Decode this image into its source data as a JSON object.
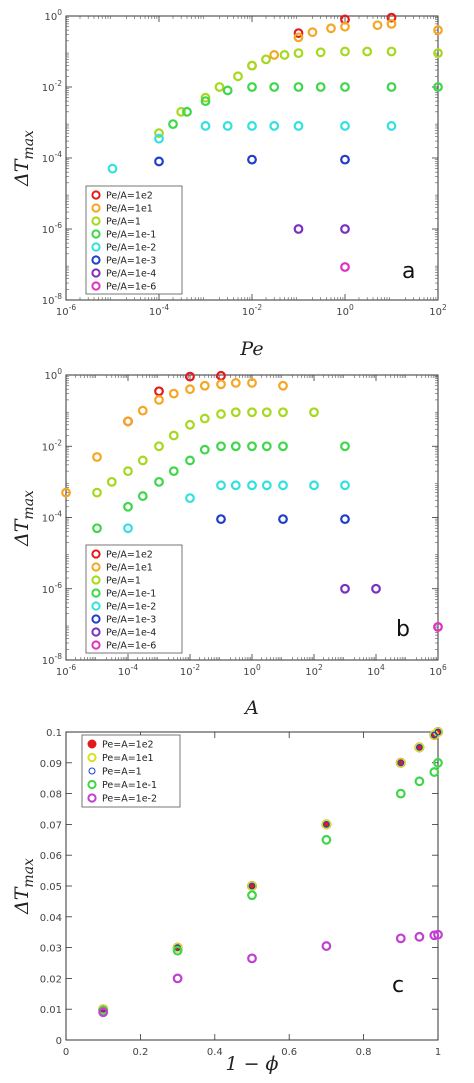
{
  "chart_data": [
    {
      "type": "scatter",
      "panel_label": "a",
      "xlabel": "Pe",
      "ylabel": "ΔT_max",
      "xscale": "log",
      "yscale": "log",
      "xlim": [
        1e-06,
        100.0
      ],
      "ylim": [
        1e-08,
        1
      ],
      "x_ticks": [
        {
          "v": 1e-06,
          "t": "10",
          "e": "-6"
        },
        {
          "v": 0.0001,
          "t": "10",
          "e": "-4"
        },
        {
          "v": 0.01,
          "t": "10",
          "e": "-2"
        },
        {
          "v": 1,
          "t": "10",
          "e": "0"
        },
        {
          "v": 100.0,
          "t": "10",
          "e": "2"
        }
      ],
      "y_ticks": [
        {
          "v": 1e-08,
          "t": "10",
          "e": "-8"
        },
        {
          "v": 1e-06,
          "t": "10",
          "e": "-6"
        },
        {
          "v": 0.0001,
          "t": "10",
          "e": "-4"
        },
        {
          "v": 0.01,
          "t": "10",
          "e": "-2"
        },
        {
          "v": 1,
          "t": "10",
          "e": "0"
        }
      ],
      "legend_position": "bottom-left",
      "series": [
        {
          "name": "Pe/A=1e2",
          "color": "#e41a1c",
          "points": [
            [
              0.1,
              0.33
            ],
            [
              1,
              0.8
            ],
            [
              10,
              0.9
            ]
          ]
        },
        {
          "name": "Pe/A=1e1",
          "color": "#f5a623",
          "points": [
            [
              0.01,
              0.04
            ],
            [
              0.03,
              0.08
            ],
            [
              0.1,
              0.25
            ],
            [
              0.2,
              0.35
            ],
            [
              0.5,
              0.45
            ],
            [
              1,
              0.5
            ],
            [
              5,
              0.55
            ],
            [
              10,
              0.6
            ],
            [
              100,
              0.4
            ]
          ]
        },
        {
          "name": "Pe/A=1",
          "color": "#a6d81e",
          "points": [
            [
              0.0001,
              0.0005
            ],
            [
              0.0003,
              0.002
            ],
            [
              0.001,
              0.005
            ],
            [
              0.002,
              0.01
            ],
            [
              0.005,
              0.02
            ],
            [
              0.01,
              0.04
            ],
            [
              0.02,
              0.06
            ],
            [
              0.05,
              0.08
            ],
            [
              0.1,
              0.09
            ],
            [
              0.3,
              0.095
            ],
            [
              1,
              0.1
            ],
            [
              3,
              0.1
            ],
            [
              10,
              0.1
            ],
            [
              100,
              0.09
            ]
          ]
        },
        {
          "name": "Pe/A=1e-1",
          "color": "#3fd64a",
          "points": [
            [
              0.0002,
              0.0009
            ],
            [
              0.0004,
              0.002
            ],
            [
              0.001,
              0.004
            ],
            [
              0.003,
              0.008
            ],
            [
              0.01,
              0.01
            ],
            [
              0.03,
              0.01
            ],
            [
              0.1,
              0.01
            ],
            [
              0.3,
              0.01
            ],
            [
              1,
              0.01
            ],
            [
              10,
              0.01
            ],
            [
              100,
              0.01
            ]
          ]
        },
        {
          "name": "Pe/A=1e-2",
          "color": "#33e0e0",
          "points": [
            [
              1e-05,
              5e-05
            ],
            [
              0.0001,
              0.00035
            ],
            [
              0.001,
              0.0008
            ],
            [
              0.003,
              0.0008
            ],
            [
              0.01,
              0.0008
            ],
            [
              0.03,
              0.0008
            ],
            [
              0.1,
              0.0008
            ],
            [
              1,
              0.0008
            ],
            [
              10,
              0.0008
            ]
          ]
        },
        {
          "name": "Pe/A=1e-3",
          "color": "#1f3fc8",
          "points": [
            [
              0.0001,
              8e-05
            ],
            [
              0.01,
              9e-05
            ],
            [
              1,
              9e-05
            ]
          ]
        },
        {
          "name": "Pe/A=1e-4",
          "color": "#7b2fbf",
          "points": [
            [
              0.1,
              1e-06
            ],
            [
              1,
              1e-06
            ]
          ]
        },
        {
          "name": "Pe/A=1e-6",
          "color": "#e030c0",
          "points": [
            [
              1,
              8.5e-08
            ]
          ]
        }
      ]
    },
    {
      "type": "scatter",
      "panel_label": "b",
      "xlabel": "A",
      "ylabel": "ΔT_max",
      "xscale": "log",
      "yscale": "log",
      "xlim": [
        1e-06,
        1000000.0
      ],
      "ylim": [
        1e-08,
        1
      ],
      "x_ticks": [
        {
          "v": 1e-06,
          "t": "10",
          "e": "-6"
        },
        {
          "v": 0.0001,
          "t": "10",
          "e": "-4"
        },
        {
          "v": 0.01,
          "t": "10",
          "e": "-2"
        },
        {
          "v": 1,
          "t": "10",
          "e": "0"
        },
        {
          "v": 100.0,
          "t": "10",
          "e": "2"
        },
        {
          "v": 10000.0,
          "t": "10",
          "e": "4"
        },
        {
          "v": 1000000.0,
          "t": "10",
          "e": "6"
        }
      ],
      "y_ticks": [
        {
          "v": 1e-08,
          "t": "10",
          "e": "-8"
        },
        {
          "v": 1e-06,
          "t": "10",
          "e": "-6"
        },
        {
          "v": 0.0001,
          "t": "10",
          "e": "-4"
        },
        {
          "v": 0.01,
          "t": "10",
          "e": "-2"
        },
        {
          "v": 1,
          "t": "10",
          "e": "0"
        }
      ],
      "legend_position": "bottom-left",
      "series": [
        {
          "name": "Pe/A=1e2",
          "color": "#e41a1c",
          "points": [
            [
              0.0001,
              0.05
            ],
            [
              0.001,
              0.35
            ],
            [
              0.01,
              0.9
            ],
            [
              0.1,
              0.95
            ]
          ]
        },
        {
          "name": "Pe/A=1e1",
          "color": "#f5a623",
          "points": [
            [
              1e-06,
              0.0005
            ],
            [
              1e-05,
              0.005
            ],
            [
              0.0001,
              0.05
            ],
            [
              0.0003,
              0.1
            ],
            [
              0.001,
              0.2
            ],
            [
              0.003,
              0.3
            ],
            [
              0.01,
              0.4
            ],
            [
              0.03,
              0.5
            ],
            [
              0.1,
              0.55
            ],
            [
              0.3,
              0.6
            ],
            [
              1,
              0.6
            ],
            [
              10,
              0.5
            ]
          ]
        },
        {
          "name": "Pe/A=1",
          "color": "#a6d81e",
          "points": [
            [
              1e-05,
              0.0005
            ],
            [
              3e-05,
              0.001
            ],
            [
              0.0001,
              0.002
            ],
            [
              0.0003,
              0.004
            ],
            [
              0.001,
              0.01
            ],
            [
              0.003,
              0.02
            ],
            [
              0.01,
              0.04
            ],
            [
              0.03,
              0.06
            ],
            [
              0.1,
              0.08
            ],
            [
              0.3,
              0.09
            ],
            [
              1,
              0.09
            ],
            [
              3,
              0.09
            ],
            [
              10,
              0.09
            ],
            [
              100,
              0.09
            ]
          ]
        },
        {
          "name": "Pe/A=1e-1",
          "color": "#3fd64a",
          "points": [
            [
              1e-05,
              5e-05
            ],
            [
              0.0001,
              0.0002
            ],
            [
              0.0003,
              0.0004
            ],
            [
              0.001,
              0.001
            ],
            [
              0.003,
              0.002
            ],
            [
              0.01,
              0.004
            ],
            [
              0.03,
              0.008
            ],
            [
              0.1,
              0.01
            ],
            [
              0.3,
              0.01
            ],
            [
              1,
              0.01
            ],
            [
              3,
              0.01
            ],
            [
              10,
              0.01
            ],
            [
              1000,
              0.01
            ]
          ]
        },
        {
          "name": "Pe/A=1e-2",
          "color": "#33e0e0",
          "points": [
            [
              0.0001,
              5e-05
            ],
            [
              0.01,
              0.00035
            ],
            [
              0.1,
              0.0008
            ],
            [
              0.3,
              0.0008
            ],
            [
              1,
              0.0008
            ],
            [
              3,
              0.0008
            ],
            [
              10,
              0.0008
            ],
            [
              100,
              0.0008
            ],
            [
              1000,
              0.0008
            ]
          ]
        },
        {
          "name": "Pe/A=1e-3",
          "color": "#1f3fc8",
          "points": [
            [
              0.1,
              9e-05
            ],
            [
              10,
              9e-05
            ],
            [
              1000,
              9e-05
            ]
          ]
        },
        {
          "name": "Pe/A=1e-4",
          "color": "#7b2fbf",
          "points": [
            [
              1000,
              1e-06
            ],
            [
              10000,
              1e-06
            ]
          ]
        },
        {
          "name": "Pe/A=1e-6",
          "color": "#e030c0",
          "points": [
            [
              1000000,
              8.5e-08
            ]
          ]
        }
      ]
    },
    {
      "type": "scatter",
      "panel_label": "c",
      "xlabel": "1 − ϕ",
      "ylabel": "ΔT_max",
      "xscale": "linear",
      "yscale": "linear",
      "xlim": [
        0,
        1
      ],
      "ylim": [
        0,
        0.1
      ],
      "x_ticks": [
        {
          "v": 0,
          "t": "0"
        },
        {
          "v": 0.2,
          "t": "0.2"
        },
        {
          "v": 0.4,
          "t": "0.4"
        },
        {
          "v": 0.6,
          "t": "0.6"
        },
        {
          "v": 0.8,
          "t": "0.8"
        },
        {
          "v": 1,
          "t": "1"
        }
      ],
      "y_ticks": [
        {
          "v": 0,
          "t": "0"
        },
        {
          "v": 0.01,
          "t": "0.01"
        },
        {
          "v": 0.02,
          "t": "0.02"
        },
        {
          "v": 0.03,
          "t": "0.03"
        },
        {
          "v": 0.04,
          "t": "0.04"
        },
        {
          "v": 0.05,
          "t": "0.05"
        },
        {
          "v": 0.06,
          "t": "0.06"
        },
        {
          "v": 0.07,
          "t": "0.07"
        },
        {
          "v": 0.08,
          "t": "0.08"
        },
        {
          "v": 0.09,
          "t": "0.09"
        },
        {
          "v": 0.1,
          "t": "0.1"
        }
      ],
      "legend_position": "top-left",
      "series": [
        {
          "name": "Pe=A=1e2",
          "color": "#e41a1c",
          "marker": "filled",
          "points": [
            [
              0.1,
              0.01
            ],
            [
              0.3,
              0.03
            ],
            [
              0.5,
              0.05
            ],
            [
              0.7,
              0.07
            ],
            [
              0.9,
              0.09
            ],
            [
              0.95,
              0.095
            ],
            [
              0.99,
              0.099
            ],
            [
              1,
              0.1
            ]
          ]
        },
        {
          "name": "Pe=A=1e1",
          "color": "#d9e021",
          "points": [
            [
              0.1,
              0.01
            ],
            [
              0.3,
              0.03
            ],
            [
              0.5,
              0.05
            ],
            [
              0.7,
              0.07
            ],
            [
              0.9,
              0.09
            ],
            [
              0.95,
              0.095
            ],
            [
              0.99,
              0.099
            ],
            [
              1,
              0.1
            ]
          ]
        },
        {
          "name": "Pe=A=1",
          "color": "#1f3fc8",
          "marker": "small",
          "points": [
            [
              0.1,
              0.01
            ],
            [
              0.3,
              0.03
            ],
            [
              0.5,
              0.05
            ],
            [
              0.7,
              0.07
            ],
            [
              0.9,
              0.09
            ],
            [
              0.95,
              0.095
            ],
            [
              0.99,
              0.099
            ],
            [
              1,
              0.1
            ]
          ]
        },
        {
          "name": "Pe=A=1e-1",
          "color": "#3fd64a",
          "points": [
            [
              0.1,
              0.0095
            ],
            [
              0.3,
              0.029
            ],
            [
              0.5,
              0.047
            ],
            [
              0.7,
              0.065
            ],
            [
              0.9,
              0.08
            ],
            [
              0.95,
              0.084
            ],
            [
              0.99,
              0.087
            ],
            [
              1,
              0.09
            ]
          ]
        },
        {
          "name": "Pe=A=1e-2",
          "color": "#c040d0",
          "points": [
            [
              0.1,
              0.009
            ],
            [
              0.3,
              0.02
            ],
            [
              0.5,
              0.0265
            ],
            [
              0.7,
              0.0305
            ],
            [
              0.9,
              0.033
            ],
            [
              0.95,
              0.0335
            ],
            [
              0.99,
              0.034
            ],
            [
              1,
              0.0342
            ]
          ]
        }
      ]
    }
  ]
}
